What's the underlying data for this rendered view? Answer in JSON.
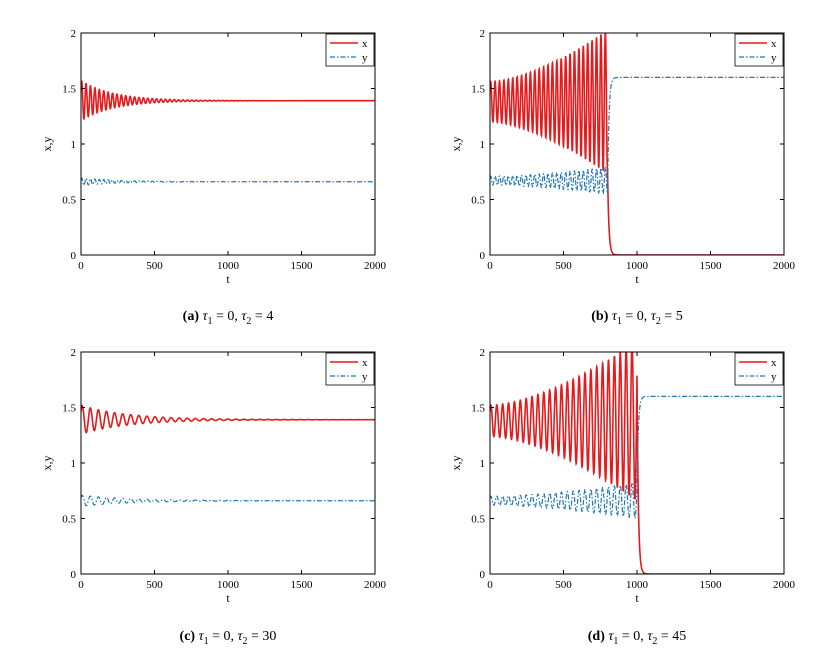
{
  "colors": {
    "x": "#e41a1c",
    "y": "#1f77b4",
    "axis": "#000000"
  },
  "chart_data": [
    {
      "type": "line",
      "label": "(a)",
      "caption": {
        "label": "(a)",
        "tau1_sym": "τ",
        "tau1_sub": "1",
        "tau1_val": " = 0, ",
        "tau2_sym": "τ",
        "tau2_sub": "2",
        "tau2_val": " = 4"
      },
      "xlabel": "t",
      "ylabel": "x,y",
      "xlim": [
        0,
        2000
      ],
      "ylim": [
        0,
        2
      ],
      "xticks": [
        "0",
        "500",
        "1000",
        "1500",
        "2000"
      ],
      "yticks": [
        "0",
        "0.5",
        "1",
        "1.5",
        "2"
      ],
      "legend": {
        "position": "top-right",
        "entries": [
          "x",
          "y"
        ]
      },
      "series": [
        {
          "name": "x",
          "style": "solid",
          "model": "damped",
          "eq": 1.39,
          "amp": 0.18,
          "period": 30,
          "decay": 220,
          "collapse": null
        },
        {
          "name": "y",
          "style": "dashdot",
          "model": "damped",
          "eq": 0.66,
          "amp": 0.035,
          "period": 30,
          "decay": 250,
          "collapse": null
        }
      ]
    },
    {
      "type": "line",
      "label": "(b)",
      "caption": {
        "label": "(b)",
        "tau1_sym": "τ",
        "tau1_sub": "1",
        "tau1_val": " = 0, ",
        "tau2_sym": "τ",
        "tau2_sub": "2",
        "tau2_val": " = 5"
      },
      "xlabel": "t",
      "ylabel": "x,y",
      "xlim": [
        0,
        2000
      ],
      "ylim": [
        0,
        2
      ],
      "xticks": [
        "0",
        "500",
        "1000",
        "1500",
        "2000"
      ],
      "yticks": [
        "0",
        "0.5",
        "1",
        "1.5",
        "2"
      ],
      "legend": {
        "position": "top-right",
        "entries": [
          "x",
          "y"
        ]
      },
      "series": [
        {
          "name": "x",
          "style": "solid",
          "model": "growing",
          "eq": 1.38,
          "amp": 0.18,
          "amp_end": 0.65,
          "period": 30,
          "collapse": 800,
          "final": 0
        },
        {
          "name": "y",
          "style": "dashdot",
          "model": "growing",
          "eq": 0.67,
          "amp": 0.04,
          "amp_end": 0.12,
          "period": 30,
          "collapse": 800,
          "final": 1.6
        }
      ]
    },
    {
      "type": "line",
      "label": "(c)",
      "caption": {
        "label": "(c)",
        "tau1_sym": "τ",
        "tau1_sub": "1",
        "tau1_val": " = 0, ",
        "tau2_sym": "τ",
        "tau2_sub": "2",
        "tau2_val": " = 30"
      },
      "xlabel": "t",
      "ylabel": "x,y",
      "xlim": [
        0,
        2000
      ],
      "ylim": [
        0,
        2
      ],
      "xticks": [
        "0",
        "500",
        "1000",
        "1500",
        "2000"
      ],
      "yticks": [
        "0",
        "0.5",
        "1",
        "1.5",
        "2"
      ],
      "legend": {
        "position": "top-right",
        "entries": [
          "x",
          "y"
        ]
      },
      "series": [
        {
          "name": "x",
          "style": "solid",
          "model": "damped",
          "eq": 1.39,
          "amp": 0.13,
          "period": 55,
          "decay": 320,
          "collapse": null
        },
        {
          "name": "y",
          "style": "dashdot",
          "model": "damped",
          "eq": 0.66,
          "amp": 0.05,
          "period": 55,
          "decay": 350,
          "collapse": null
        }
      ]
    },
    {
      "type": "line",
      "label": "(d)",
      "caption": {
        "label": "(d)",
        "tau1_sym": "τ",
        "tau1_sub": "1",
        "tau1_val": " = 0, ",
        "tau2_sym": "τ",
        "tau2_sub": "2",
        "tau2_val": " = 45"
      },
      "xlabel": "t",
      "ylabel": "x,y",
      "xlim": [
        0,
        2000
      ],
      "ylim": [
        0,
        2
      ],
      "xticks": [
        "0",
        "500",
        "1000",
        "1500",
        "2000"
      ],
      "yticks": [
        "0",
        "0.5",
        "1",
        "1.5",
        "2"
      ],
      "legend": {
        "position": "top-right",
        "entries": [
          "x",
          "y"
        ]
      },
      "series": [
        {
          "name": "x",
          "style": "solid",
          "model": "growing",
          "eq": 1.38,
          "amp": 0.14,
          "amp_end": 0.72,
          "period": 40,
          "collapse": 1000,
          "final": 0
        },
        {
          "name": "y",
          "style": "dashdot",
          "model": "growing",
          "eq": 0.66,
          "amp": 0.04,
          "amp_end": 0.16,
          "period": 40,
          "collapse": 1000,
          "final": 1.6
        }
      ]
    }
  ]
}
